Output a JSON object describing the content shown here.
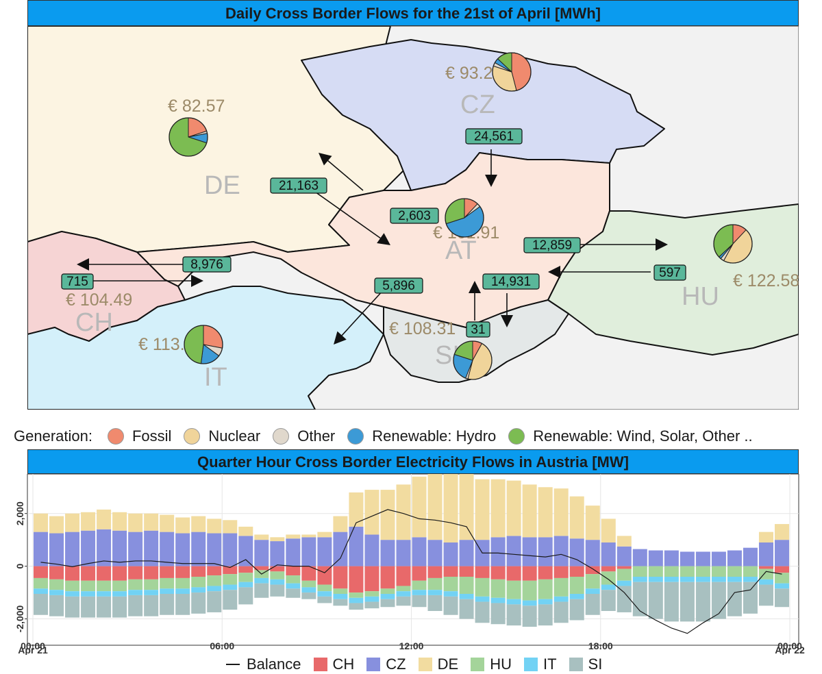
{
  "map_title": "Daily Cross Border Flows for the 21st of April   [MWh]",
  "chart_title": "Quarter Hour Cross Border Electricity Flows in Austria [MW]",
  "generation_legend": {
    "label": "Generation:",
    "items": [
      {
        "name": "Fossil",
        "color": "#f08a6e"
      },
      {
        "name": "Nuclear",
        "color": "#f0d49a"
      },
      {
        "name": "Other",
        "color": "#e0d8cc"
      },
      {
        "name": "Renewable: Hydro",
        "color": "#3c9ad6"
      },
      {
        "name": "Renewable: Wind, Solar, Other ..",
        "color": "#7cbc52"
      }
    ]
  },
  "countries": [
    {
      "code": "DE",
      "price": "€ 82.57",
      "fill": "#fcf4e2",
      "pie": [
        0.2,
        0.0,
        0.02,
        0.08,
        0.7
      ]
    },
    {
      "code": "CZ",
      "price": "€ 93.21",
      "fill": "#d6dcf4",
      "pie": [
        0.46,
        0.34,
        0.03,
        0.04,
        0.13
      ]
    },
    {
      "code": "AT",
      "price": "€ 101.91",
      "fill": "#fce6dc",
      "pie": [
        0.12,
        0.0,
        0.03,
        0.55,
        0.3
      ]
    },
    {
      "code": "HU",
      "price": "€ 122.58",
      "fill": "#e0eedc",
      "pie": [
        0.12,
        0.46,
        0.03,
        0.02,
        0.37
      ]
    },
    {
      "code": "CH",
      "price": "€ 104.49",
      "fill": "#f6d4d4",
      "pie": []
    },
    {
      "code": "IT",
      "price": "€ 113.58",
      "fill": "#d4f0fa",
      "pie": [
        0.28,
        0.0,
        0.07,
        0.17,
        0.48
      ]
    },
    {
      "code": "SI",
      "price": "€ 108.31",
      "fill": "#e4e8e8",
      "pie": [
        0.08,
        0.46,
        0.02,
        0.24,
        0.2
      ]
    }
  ],
  "flows": [
    {
      "label": "24,561",
      "from": "CZ",
      "to": "AT"
    },
    {
      "label": "21,163",
      "from": "DE",
      "to": "AT"
    },
    {
      "label": "2,603",
      "from": "AT",
      "to": "DE"
    },
    {
      "label": "12,859",
      "from": "AT",
      "to": "HU"
    },
    {
      "label": "597",
      "from": "HU",
      "to": "AT"
    },
    {
      "label": "8,976",
      "from": "AT",
      "to": "CH"
    },
    {
      "label": "715",
      "from": "CH",
      "to": "AT"
    },
    {
      "label": "5,896",
      "from": "AT",
      "to": "IT"
    },
    {
      "label": "14,931",
      "from": "SI",
      "to": "AT"
    },
    {
      "label": "31",
      "from": "AT",
      "to": "SI"
    }
  ],
  "flow_legend": {
    "balance_label": "Balance",
    "items": [
      {
        "name": "CH",
        "color": "#e8696a"
      },
      {
        "name": "CZ",
        "color": "#8790de"
      },
      {
        "name": "DE",
        "color": "#f2dca0"
      },
      {
        "name": "HU",
        "color": "#a4d49a"
      },
      {
        "name": "IT",
        "color": "#72d2f4"
      },
      {
        "name": "SI",
        "color": "#a8c0c0"
      }
    ]
  },
  "chart_data": {
    "type": "bar",
    "stacked": true,
    "title": "Quarter Hour Cross Border Electricity Flows in Austria [MW]",
    "ylim": [
      -3000,
      3500
    ],
    "yticks": [
      -2000,
      0,
      2000
    ],
    "ytick_labels": [
      "-2,000",
      "0",
      "2,000"
    ],
    "xticks": [
      0,
      6,
      12,
      18,
      24
    ],
    "xtick_labels": [
      "00:00",
      "06:00",
      "12:00",
      "18:00",
      "00:00"
    ],
    "xtick_sublabels": [
      "Apr 21",
      "",
      "",
      "",
      "Apr 22"
    ],
    "grid": true,
    "x_hours": [
      0,
      0.5,
      1,
      1.5,
      2,
      2.5,
      3,
      3.5,
      4,
      4.5,
      5,
      5.5,
      6,
      6.5,
      7,
      7.5,
      8,
      8.5,
      9,
      9.5,
      10,
      10.5,
      11,
      11.5,
      12,
      12.5,
      13,
      13.5,
      14,
      14.5,
      15,
      15.5,
      16,
      16.5,
      17,
      17.5,
      18,
      18.5,
      19,
      19.5,
      20,
      20.5,
      21,
      21.5,
      22,
      22.5,
      23,
      23.5
    ],
    "series": [
      {
        "name": "CZ",
        "values": [
          1300,
          1250,
          1300,
          1350,
          1400,
          1350,
          1300,
          1350,
          1300,
          1250,
          1300,
          1250,
          1250,
          1150,
          1000,
          950,
          1050,
          1100,
          1100,
          1300,
          1500,
          1200,
          1000,
          1000,
          1100,
          1000,
          900,
          1000,
          1000,
          1100,
          1150,
          1100,
          1100,
          1150,
          1050,
          1000,
          900,
          750,
          650,
          600,
          600,
          550,
          550,
          550,
          600,
          700,
          900,
          1000
        ]
      },
      {
        "name": "DE",
        "values": [
          700,
          650,
          700,
          700,
          750,
          700,
          700,
          650,
          650,
          600,
          600,
          550,
          500,
          350,
          200,
          150,
          150,
          100,
          200,
          600,
          1300,
          1700,
          1900,
          2100,
          2300,
          2500,
          2600,
          2500,
          2300,
          2200,
          2100,
          2000,
          1900,
          1800,
          1600,
          1300,
          900,
          400,
          0,
          0,
          0,
          0,
          0,
          0,
          0,
          0,
          400,
          600
        ]
      },
      {
        "name": "CH",
        "values": [
          -450,
          -500,
          -550,
          -550,
          -550,
          -550,
          -500,
          -500,
          -450,
          -450,
          -400,
          -350,
          -300,
          -250,
          -150,
          -200,
          -350,
          -550,
          -700,
          -850,
          -1000,
          -950,
          -850,
          -750,
          -550,
          -450,
          -400,
          -400,
          -450,
          -500,
          -550,
          -550,
          -500,
          -450,
          -400,
          -300,
          -200,
          -100,
          0,
          0,
          0,
          0,
          0,
          0,
          0,
          0,
          -100,
          -250
        ]
      },
      {
        "name": "HU",
        "values": [
          -400,
          -400,
          -400,
          -400,
          -400,
          -400,
          -400,
          -400,
          -400,
          -400,
          -400,
          -400,
          -400,
          -350,
          -300,
          -300,
          -300,
          -250,
          -250,
          -200,
          -200,
          -200,
          -200,
          -200,
          -350,
          -450,
          -550,
          -650,
          -700,
          -700,
          -700,
          -750,
          -750,
          -700,
          -650,
          -550,
          -500,
          -450,
          -400,
          -400,
          -400,
          -400,
          -400,
          -400,
          -400,
          -400,
          -400,
          -400
        ]
      },
      {
        "name": "IT",
        "values": [
          -200,
          -200,
          -200,
          -200,
          -200,
          -200,
          -200,
          -200,
          -200,
          -200,
          -200,
          -200,
          -200,
          -200,
          -200,
          -200,
          -200,
          -200,
          -200,
          -200,
          -200,
          -200,
          -200,
          -200,
          -200,
          -200,
          -200,
          -200,
          -200,
          -200,
          -200,
          -200,
          -200,
          -200,
          -200,
          -200,
          -200,
          -200,
          -200,
          -200,
          -200,
          -200,
          -200,
          -200,
          -200,
          -200,
          -200,
          -200
        ]
      },
      {
        "name": "SI",
        "values": [
          -800,
          -800,
          -800,
          -800,
          -800,
          -800,
          -800,
          -800,
          -800,
          -800,
          -800,
          -800,
          -750,
          -650,
          -550,
          -450,
          -350,
          -250,
          -250,
          -250,
          -250,
          -250,
          -300,
          -350,
          -450,
          -600,
          -700,
          -750,
          -800,
          -800,
          -800,
          -800,
          -800,
          -800,
          -800,
          -800,
          -800,
          -1000,
          -1300,
          -1400,
          -1500,
          -1500,
          -1500,
          -1400,
          -1300,
          -1200,
          -800,
          -700
        ]
      }
    ],
    "balance": [
      150,
      80,
      -20,
      100,
      200,
      150,
      200,
      200,
      150,
      100,
      100,
      100,
      -50,
      250,
      -300,
      50,
      0,
      0,
      -250,
      300,
      1650,
      1900,
      2150,
      2000,
      1800,
      1750,
      1650,
      1500,
      500,
      500,
      450,
      400,
      350,
      450,
      250,
      -100,
      -500,
      -1000,
      -1700,
      -2050,
      -2350,
      -2550,
      -2150,
      -1800,
      -1000,
      -900,
      -200,
      -300
    ]
  }
}
